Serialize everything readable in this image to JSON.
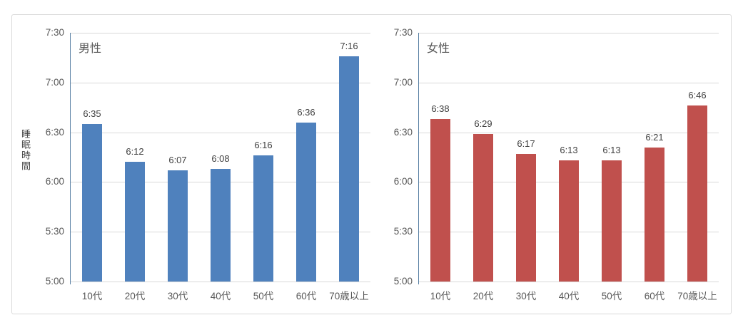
{
  "y_axis_title": "睡眠時間",
  "chart_data": [
    {
      "type": "bar",
      "title": "男性",
      "categories": [
        "10代",
        "20代",
        "30代",
        "40代",
        "50代",
        "60代",
        "70歳以上"
      ],
      "values_label": [
        "6:35",
        "6:12",
        "6:07",
        "6:08",
        "6:16",
        "6:36",
        "7:16"
      ],
      "values_minutes": [
        395,
        372,
        367,
        368,
        376,
        396,
        436
      ],
      "ylabel": "睡眠時間",
      "xlabel": "",
      "ylim_labels": [
        "5:00",
        "7:30"
      ],
      "ylim_minutes": [
        300,
        450
      ],
      "yticks_labels": [
        "7:30",
        "7:00",
        "6:30",
        "6:00",
        "5:30",
        "5:00"
      ],
      "yticks_minutes": [
        450,
        420,
        390,
        360,
        330,
        300
      ],
      "grid": "horizontal",
      "legend": "none",
      "bar_color": "#4f81bd"
    },
    {
      "type": "bar",
      "title": "女性",
      "categories": [
        "10代",
        "20代",
        "30代",
        "40代",
        "50代",
        "60代",
        "70歳以上"
      ],
      "values_label": [
        "6:38",
        "6:29",
        "6:17",
        "6:13",
        "6:13",
        "6:21",
        "6:46"
      ],
      "values_minutes": [
        398,
        389,
        377,
        373,
        373,
        381,
        406
      ],
      "ylabel": "",
      "xlabel": "",
      "ylim_labels": [
        "5:00",
        "7:30"
      ],
      "ylim_minutes": [
        300,
        450
      ],
      "yticks_labels": [
        "7:30",
        "7:00",
        "6:30",
        "6:00",
        "5:30",
        "5:00"
      ],
      "yticks_minutes": [
        450,
        420,
        390,
        360,
        330,
        300
      ],
      "grid": "horizontal",
      "legend": "none",
      "bar_color": "#c0504d"
    }
  ],
  "colors": {
    "male_bar": "#4f81bd",
    "female_bar": "#c0504d",
    "gridline": "#d9d9d9",
    "axis_line": "#5a81a5",
    "tick_text": "#595959",
    "data_label_text": "#404040",
    "frame_border": "#d9d9d9",
    "background": "#ffffff"
  }
}
